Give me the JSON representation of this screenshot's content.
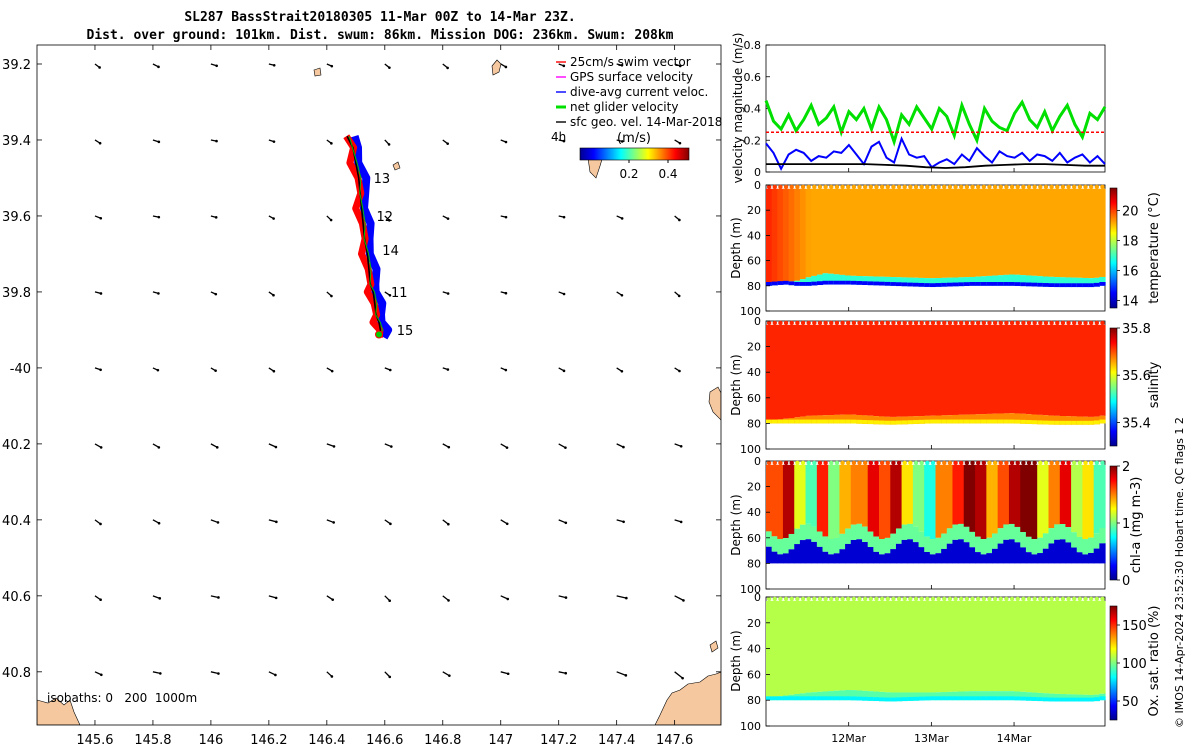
{
  "title_line1": "SL287 BassStrait20180305 11-Mar 00Z to 14-Mar 23Z.",
  "title_line2": "Dist. over ground: 101km. Dist. swum: 86km. Mission DOG: 236km. Swum: 208km",
  "credit": "© IMOS 14-Apr-2024 23:52:30 Hobart time. QC flags 1  2",
  "colors": {
    "land": "#f6c89f",
    "swim": "#ff0000",
    "gps": "#ff00ff",
    "dive": "#0000ff",
    "net": "#00e000",
    "sfc": "#000000",
    "track_red": "#ff0000",
    "track_blue": "#0000ff"
  },
  "chart_data": [
    {
      "type": "map",
      "name": "glider-track-map",
      "xlim": [
        145.4,
        147.76
      ],
      "ylim": [
        -40.94,
        -39.15
      ],
      "xticks": [
        145.6,
        145.8,
        146,
        146.2,
        146.4,
        146.6,
        146.8,
        147,
        147.2,
        147.4,
        147.6
      ],
      "xtick_labels": [
        "145.6",
        "145.8",
        "146",
        "146.2",
        "146.4",
        "146.6",
        "146.8",
        "147",
        "147.2",
        "147.4",
        "147.6"
      ],
      "yticks": [
        -39.2,
        -39.4,
        -39.6,
        -39.8,
        -40,
        -40.2,
        -40.4,
        -40.6,
        -40.8
      ],
      "ytick_labels": [
        "39.2",
        "39.4",
        "39.6",
        "39.8",
        "-40",
        "40.2",
        "40.4",
        "40.6",
        "40.8"
      ],
      "legend": {
        "placement": "top-right",
        "entries": [
          "25cm/s swim vector",
          "GPS surface velocity",
          "dive-avg current veloc.",
          "net glider velocity",
          "sfc geo. vel. 14-Mar-2018"
        ],
        "extra_label": "4h",
        "colorbar_label": "(m/s)",
        "colorbar_ticks": [
          "0.2",
          "0.4"
        ],
        "colorbar_range": [
          0,
          0.5
        ]
      },
      "isobaths_label": "isobaths: 0   200  1000m",
      "day_labels": [
        {
          "label": "13",
          "lon": 146.52,
          "lat": -39.5
        },
        {
          "label": "12",
          "lon": 146.53,
          "lat": -39.6
        },
        {
          "label": "14",
          "lon": 146.55,
          "lat": -39.69
        },
        {
          "label": "11",
          "lon": 146.58,
          "lat": -39.8
        },
        {
          "label": "15",
          "lon": 146.6,
          "lat": -39.9
        }
      ],
      "track": {
        "lon": [
          146.47,
          146.49,
          146.5,
          146.51,
          146.515,
          146.52,
          146.525,
          146.53,
          146.54,
          146.545,
          146.55,
          146.56,
          146.565,
          146.57,
          146.58,
          146.585,
          146.58
        ],
        "lat": [
          -39.39,
          -39.42,
          -39.46,
          -39.5,
          -39.54,
          -39.58,
          -39.62,
          -39.66,
          -39.7,
          -39.74,
          -39.78,
          -39.8,
          -39.83,
          -39.86,
          -39.88,
          -39.9,
          -39.92
        ]
      },
      "sfc_vectors": {
        "lons": [
          145.6,
          145.8,
          146.0,
          146.2,
          146.4,
          146.6,
          146.8,
          147.0,
          147.2,
          147.4,
          147.6
        ],
        "lats": [
          -39.2,
          -39.4,
          -39.6,
          -39.8,
          -40.0,
          -40.2,
          -40.4,
          -40.6,
          -40.8
        ],
        "u": 0.04,
        "v": -0.02
      }
    },
    {
      "type": "line",
      "name": "velocity-magnitude",
      "ylabel": "velocity magnitude (m/s)",
      "ylim": [
        0,
        0.8
      ],
      "yticks": [
        "0",
        "0.2",
        "0.4",
        "0.6",
        "0.8"
      ],
      "xlim_days": [
        0,
        4.1
      ],
      "series": [
        {
          "name": "net glider velocity",
          "color": "#00e000",
          "values": [
            0.45,
            0.32,
            0.27,
            0.36,
            0.26,
            0.33,
            0.42,
            0.3,
            0.34,
            0.41,
            0.25,
            0.38,
            0.33,
            0.4,
            0.27,
            0.41,
            0.33,
            0.19,
            0.36,
            0.3,
            0.41,
            0.34,
            0.27,
            0.4,
            0.35,
            0.23,
            0.42,
            0.3,
            0.2,
            0.4,
            0.32,
            0.28,
            0.26,
            0.37,
            0.44,
            0.33,
            0.28,
            0.38,
            0.26,
            0.35,
            0.42,
            0.3,
            0.22,
            0.37,
            0.33,
            0.41
          ]
        },
        {
          "name": "dive-avg current veloc.",
          "color": "#0000ff",
          "values": [
            0.18,
            0.12,
            0.02,
            0.11,
            0.14,
            0.12,
            0.07,
            0.1,
            0.09,
            0.13,
            0.12,
            0.17,
            0.11,
            0.05,
            0.16,
            0.19,
            0.09,
            0.06,
            0.21,
            0.11,
            0.09,
            0.1,
            0.03,
            0.06,
            0.08,
            0.05,
            0.11,
            0.07,
            0.15,
            0.1,
            0.06,
            0.13,
            0.1,
            0.09,
            0.12,
            0.07,
            0.11,
            0.1,
            0.07,
            0.12,
            0.06,
            0.09,
            0.11,
            0.06,
            0.1,
            0.05
          ]
        },
        {
          "name": "swim (25cm/s)",
          "color": "#ff0000",
          "values": [
            0.25,
            0.25
          ]
        },
        {
          "name": "sfc geo",
          "color": "#000000",
          "values": [
            0.05,
            0.05,
            0.05,
            0.05,
            0.05,
            0.05,
            0.045,
            0.04,
            0.03,
            0.025,
            0.03,
            0.04,
            0.045,
            0.05,
            0.05,
            0.045,
            0.04,
            0.04
          ]
        }
      ]
    },
    {
      "type": "heatmap",
      "name": "temperature-section",
      "ylabel": "Depth (m)",
      "cblabel": "temperature (°C)",
      "clim": [
        13.5,
        21.5
      ],
      "cticks": [
        "14",
        "16",
        "18",
        "20"
      ],
      "yticks": [
        "0",
        "20",
        "40",
        "60",
        "80",
        "100"
      ],
      "ylim": [
        0,
        100
      ],
      "mixed_value": 19.2,
      "bottom_value": 14.5,
      "x": [
        0,
        0.2,
        0.35,
        0.5,
        0.7,
        1.0,
        1.5,
        2.0,
        2.5,
        3.0,
        3.5,
        4.0,
        4.1
      ],
      "thermocline_depth": [
        78,
        77,
        76,
        73,
        70,
        72,
        73,
        74,
        73,
        71,
        73,
        74,
        73
      ],
      "bottom_depth": [
        80,
        79,
        80,
        80,
        79,
        79,
        80,
        81,
        80,
        80,
        81,
        81,
        80
      ]
    },
    {
      "type": "heatmap",
      "name": "salinity-section",
      "ylabel": "Depth (m)",
      "cblabel": "salinity",
      "clim": [
        35.3,
        35.8
      ],
      "cticks": [
        "35.4",
        "35.6",
        "35.8"
      ],
      "yticks": [
        "0",
        "20",
        "40",
        "60",
        "80",
        "100"
      ],
      "ylim": [
        0,
        100
      ],
      "mixed_value": 35.72,
      "bottom_value": 35.62,
      "x": [
        0,
        0.5,
        1.0,
        1.5,
        2.0,
        2.5,
        3.0,
        3.5,
        4.0,
        4.1
      ],
      "thermocline_depth": [
        78,
        74,
        73,
        75,
        74,
        73,
        72,
        74,
        75,
        74
      ],
      "bottom_depth": [
        80,
        80,
        80,
        81,
        80,
        80,
        80,
        81,
        81,
        80
      ]
    },
    {
      "type": "heatmap",
      "name": "chla-section",
      "ylabel": "Depth (m)",
      "cblabel": "chl-a (mg m-3)",
      "clim": [
        0,
        2
      ],
      "cticks": [
        "0",
        "1",
        "2"
      ],
      "yticks": [
        "0",
        "20",
        "40",
        "60",
        "80",
        "100"
      ],
      "ylim": [
        0,
        100
      ],
      "columns": [
        1.6,
        1.9,
        1.2,
        0.9,
        1.7,
        1.0,
        1.4,
        1.5,
        1.8,
        1.6,
        1.9,
        1.3,
        1.0,
        0.8,
        1.5,
        1.7,
        2.0,
        1.9,
        1.4,
        1.6,
        1.9,
        2.0,
        1.2,
        1.5,
        1.8,
        1.1,
        1.3,
        0.9
      ],
      "bottom_depth": 80
    },
    {
      "type": "heatmap",
      "name": "oxygen-section",
      "ylabel": "Depth (m)",
      "cblabel": "Ox. sat. ratio (%)",
      "clim": [
        25,
        175
      ],
      "cticks": [
        "50",
        "100",
        "150"
      ],
      "yticks": [
        "0",
        "20",
        "40",
        "60",
        "80",
        "100"
      ],
      "ylim": [
        0,
        100
      ],
      "mixed_value": 108,
      "bottom_value": 80,
      "x": [
        0,
        0.5,
        1.0,
        1.5,
        2.0,
        2.5,
        3.0,
        3.5,
        4.0,
        4.1
      ],
      "thermocline_depth": [
        78,
        74,
        72,
        74,
        74,
        73,
        73,
        75,
        76,
        75
      ],
      "bottom_depth": [
        80,
        80,
        80,
        81,
        80,
        80,
        80,
        81,
        81,
        80
      ]
    }
  ],
  "time_axis": {
    "ticks": [
      1,
      2,
      3
    ],
    "labels": [
      "12Mar",
      "13Mar",
      "14Mar"
    ]
  }
}
